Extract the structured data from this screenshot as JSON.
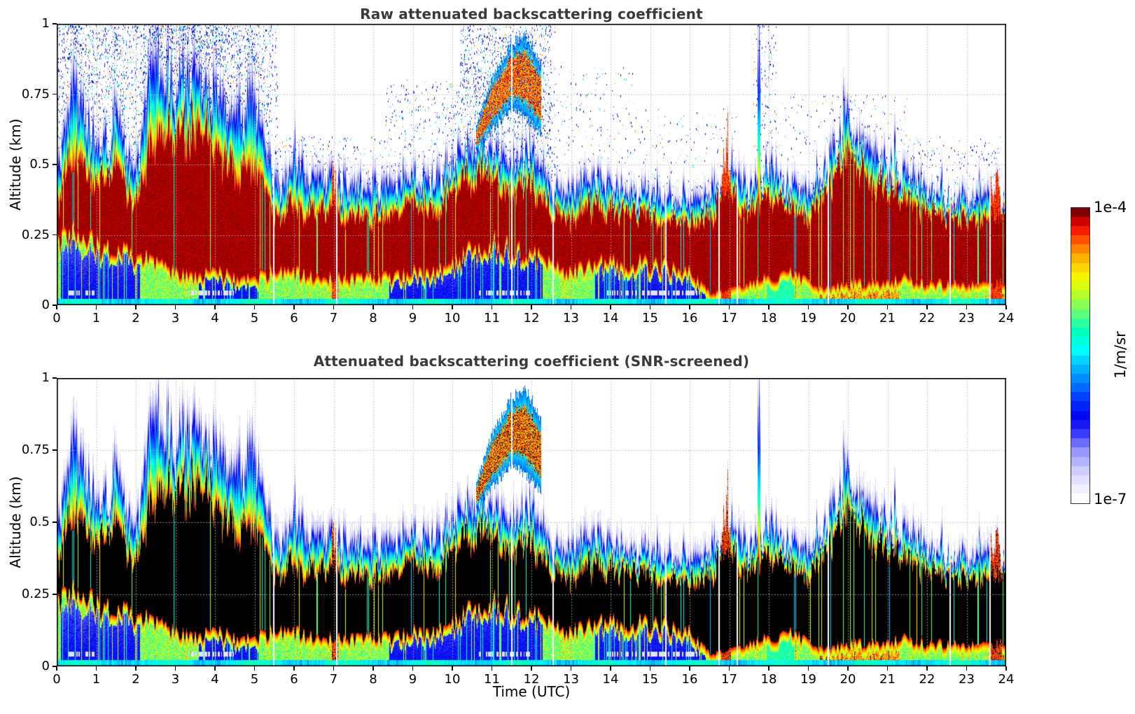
{
  "chart_data": {
    "type": "heatmap",
    "panels": [
      {
        "title": "Raw attenuated backscattering coefficient",
        "variant": "raw"
      },
      {
        "title": "Attenuated backscattering coefficient (SNR-screened)",
        "variant": "screened"
      }
    ],
    "x": {
      "label": "Time (UTC)",
      "range": [
        0,
        24
      ],
      "tick_labels": [
        "0",
        "1",
        "2",
        "3",
        "4",
        "5",
        "6",
        "7",
        "8",
        "9",
        "10",
        "11",
        "12",
        "13",
        "14",
        "15",
        "16",
        "17",
        "18",
        "19",
        "20",
        "21",
        "22",
        "23",
        "24"
      ]
    },
    "y": {
      "label": "Altitude (km)",
      "range": [
        0,
        1
      ],
      "ticks": [
        0,
        0.25,
        0.5,
        0.75,
        1
      ],
      "tick_labels": [
        "0",
        "0.25",
        "0.5",
        "0.75",
        "1"
      ]
    },
    "color_scale": {
      "min_label": "1e-7",
      "max_label": "1e-4",
      "unit": "1/m/sr",
      "scale": "log"
    },
    "colormap_stops": [
      [
        0.0,
        "#ffffff"
      ],
      [
        0.05,
        "#e8e8ff"
      ],
      [
        0.1,
        "#ccccff"
      ],
      [
        0.16,
        "#9999ff"
      ],
      [
        0.22,
        "#4444ff"
      ],
      [
        0.28,
        "#0000ee"
      ],
      [
        0.34,
        "#0033ff"
      ],
      [
        0.4,
        "#0077ff"
      ],
      [
        0.46,
        "#00bbff"
      ],
      [
        0.52,
        "#00ffff"
      ],
      [
        0.58,
        "#00ffbb"
      ],
      [
        0.64,
        "#55ff88"
      ],
      [
        0.7,
        "#aaff33"
      ],
      [
        0.76,
        "#eeff00"
      ],
      [
        0.82,
        "#ffcc00"
      ],
      [
        0.88,
        "#ff7700"
      ],
      [
        0.93,
        "#ff2200"
      ],
      [
        0.97,
        "#cc0000"
      ],
      [
        1.0,
        "#7e0000"
      ]
    ],
    "saturated_color_screened": "#000000",
    "grid_color": "#b4b4b4",
    "model": {
      "t": [
        0,
        0.5,
        1,
        1.5,
        2,
        2.5,
        3,
        3.5,
        4,
        4.5,
        5,
        5.5,
        6,
        6.5,
        7,
        7.5,
        8,
        8.5,
        9,
        9.5,
        10,
        10.5,
        11,
        11.5,
        12,
        12.5,
        13,
        13.5,
        14,
        14.5,
        15,
        15.5,
        16,
        16.5,
        17,
        17.5,
        18,
        18.5,
        19,
        19.5,
        20,
        20.5,
        21,
        21.5,
        22,
        22.5,
        23,
        23.5,
        24
      ],
      "layer_top": [
        0.5,
        0.8,
        0.55,
        0.62,
        0.5,
        0.88,
        0.75,
        0.8,
        0.78,
        0.65,
        0.72,
        0.45,
        0.5,
        0.42,
        0.46,
        0.4,
        0.4,
        0.42,
        0.46,
        0.42,
        0.5,
        0.56,
        0.55,
        0.5,
        0.55,
        0.42,
        0.4,
        0.45,
        0.42,
        0.4,
        0.4,
        0.4,
        0.38,
        0.4,
        0.48,
        0.42,
        0.5,
        0.45,
        0.4,
        0.5,
        0.63,
        0.55,
        0.5,
        0.45,
        0.42,
        0.4,
        0.38,
        0.4,
        0.38
      ],
      "core_top": [
        0.35,
        0.55,
        0.4,
        0.45,
        0.35,
        0.6,
        0.55,
        0.6,
        0.55,
        0.45,
        0.5,
        0.32,
        0.35,
        0.31,
        0.33,
        0.3,
        0.3,
        0.32,
        0.35,
        0.32,
        0.38,
        0.44,
        0.42,
        0.38,
        0.42,
        0.32,
        0.3,
        0.34,
        0.32,
        0.31,
        0.31,
        0.3,
        0.29,
        0.31,
        0.38,
        0.33,
        0.38,
        0.35,
        0.31,
        0.4,
        0.5,
        0.44,
        0.4,
        0.36,
        0.33,
        0.31,
        0.3,
        0.31,
        0.3
      ],
      "core_bottom": [
        0.22,
        0.25,
        0.22,
        0.2,
        0.18,
        0.15,
        0.12,
        0.1,
        0.12,
        0.1,
        0.1,
        0.12,
        0.12,
        0.1,
        0.1,
        0.1,
        0.1,
        0.1,
        0.12,
        0.12,
        0.15,
        0.2,
        0.22,
        0.2,
        0.18,
        0.15,
        0.12,
        0.15,
        0.15,
        0.15,
        0.15,
        0.14,
        0.12,
        0.05,
        0.05,
        0.08,
        0.1,
        0.12,
        0.08,
        0.06,
        0.08,
        0.08,
        0.08,
        0.1,
        0.08,
        0.08,
        0.08,
        0.08,
        0.08
      ],
      "surface_blue": [
        [
          0.1,
          2.1,
          0.2
        ],
        [
          3.6,
          5.1,
          0.18
        ],
        [
          8.4,
          10.25,
          0.15
        ],
        [
          10.25,
          12.3,
          0.26
        ],
        [
          13.6,
          16.4,
          0.16
        ]
      ],
      "hot_regions": [
        [
          19.3,
          21.3,
          0.18
        ],
        [
          17.9,
          18.7,
          0.08
        ],
        [
          23.55,
          24.0,
          0.15
        ]
      ],
      "surface_green": [
        [
          17.95,
          18.65
        ]
      ],
      "warm_columns": [
        [
          6.95,
          7.12
        ],
        [
          16.8,
          17.05
        ],
        [
          23.6,
          23.9
        ]
      ],
      "gap_times": [
        5.48,
        7.08,
        11.5,
        12.55,
        15.4,
        16.75,
        17.2,
        19.5,
        22.58,
        23.6
      ],
      "lavender_dash_ranges": [
        [
          0.2,
          0.95
        ],
        [
          3.3,
          4.5
        ],
        [
          10.6,
          12.0
        ],
        [
          13.9,
          16.2
        ]
      ],
      "clouds": [
        {
          "t": [
            10.6,
            11.0,
            11.5,
            11.9,
            12.25
          ],
          "base": [
            0.55,
            0.62,
            0.7,
            0.66,
            0.6
          ],
          "top": [
            0.62,
            0.8,
            0.93,
            0.95,
            0.85
          ]
        }
      ],
      "spikes": [
        {
          "t": 0.35,
          "top": 0.82
        },
        {
          "t": 1.45,
          "top": 0.65
        },
        {
          "t": 2.6,
          "top": 0.92
        },
        {
          "t": 2.8,
          "top": 0.88
        },
        {
          "t": 3.2,
          "top": 0.85
        },
        {
          "t": 3.6,
          "top": 0.8
        },
        {
          "t": 4.05,
          "top": 0.8
        },
        {
          "t": 4.95,
          "top": 0.72
        },
        {
          "t": 6.0,
          "top": 0.52
        },
        {
          "t": 7.05,
          "top": 0.48
        },
        {
          "t": 9.05,
          "top": 0.56
        },
        {
          "t": 10.7,
          "top": 0.6
        },
        {
          "t": 16.95,
          "top": 0.5
        },
        {
          "t": 17.75,
          "top": 0.95
        },
        {
          "t": 19.9,
          "top": 0.66
        },
        {
          "t": 20.3,
          "top": 0.6
        },
        {
          "t": 21.2,
          "top": 0.56
        },
        {
          "t": 23.3,
          "top": 0.45
        }
      ],
      "noise_regions": [
        [
          0,
          5.6,
          1.0,
          0.5
        ],
        [
          5.6,
          8.3,
          0.6,
          0.06
        ],
        [
          8.3,
          10.2,
          0.8,
          0.15
        ],
        [
          10.2,
          12.6,
          1.0,
          0.6
        ],
        [
          12.6,
          14.6,
          0.85,
          0.08
        ],
        [
          14.6,
          17.2,
          0.7,
          0.05
        ],
        [
          17.6,
          18.2,
          1.0,
          0.25
        ],
        [
          18.2,
          21.5,
          0.75,
          0.05
        ],
        [
          21.5,
          23.9,
          0.6,
          0.07
        ]
      ]
    }
  }
}
